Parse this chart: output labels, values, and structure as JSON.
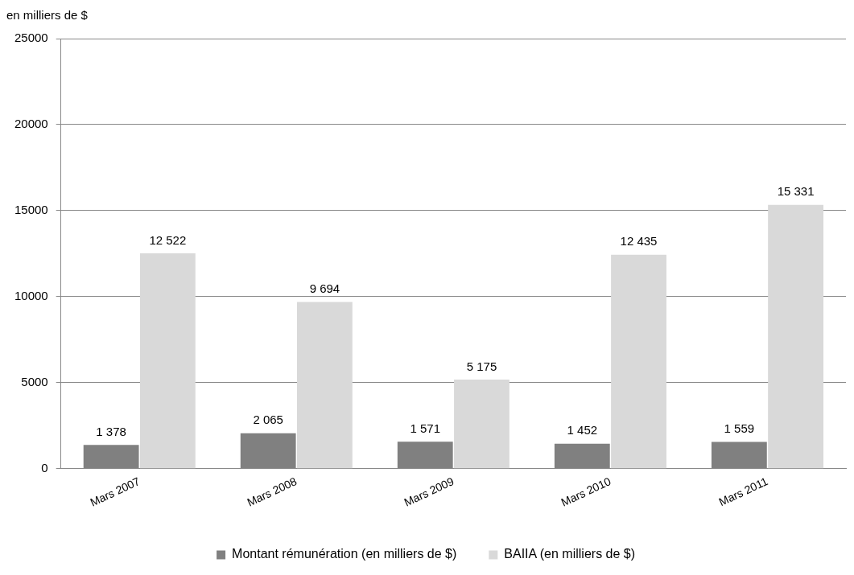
{
  "chart_data": {
    "type": "bar",
    "ylabel": "en milliers de $",
    "categories": [
      "Mars 2007",
      "Mars 2008",
      "Mars 2009",
      "Mars 2010",
      "Mars 2011"
    ],
    "series": [
      {
        "name": "Montant rémunération (en milliers de $)",
        "color": "#808080",
        "values": [
          1378,
          2065,
          1571,
          1452,
          1559
        ],
        "value_labels": [
          "1 378",
          "2 065",
          "1 571",
          "1 452",
          "1 559"
        ]
      },
      {
        "name": "BAIIA (en milliers de $)",
        "color": "#d9d9d9",
        "values": [
          12522,
          9694,
          5175,
          12435,
          15331
        ],
        "value_labels": [
          "12 522",
          "9 694",
          "5 175",
          "12 435",
          "15 331"
        ]
      }
    ],
    "ylim": [
      0,
      25000
    ],
    "yticks": [
      0,
      5000,
      10000,
      15000,
      20000,
      25000
    ],
    "grid": "y",
    "legend": "bottom"
  }
}
